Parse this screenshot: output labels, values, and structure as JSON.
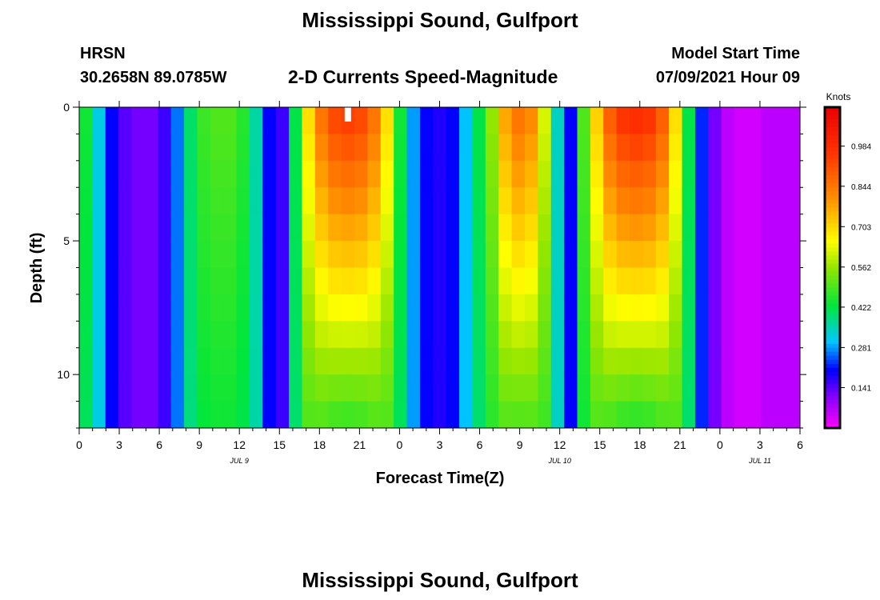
{
  "header": {
    "title": "Mississippi Sound, Gulfport",
    "station": "HRSN",
    "coordinates": "30.2658N  89.0785W",
    "subtitle": "2-D Currents Speed-Magnitude",
    "model_start_label": "Model Start Time",
    "model_start_value": "07/09/2021 Hour 09"
  },
  "footer": {
    "title": "Mississippi Sound, Gulfport"
  },
  "chart_data": {
    "type": "heatmap",
    "title": "2-D Currents Speed-Magnitude",
    "xlabel": "Forecast Time(Z)",
    "ylabel": "Depth (ft)",
    "x_tick_labels": [
      "0",
      "3",
      "6",
      "9",
      "12",
      "15",
      "18",
      "21",
      "0",
      "3",
      "6",
      "9",
      "12",
      "15",
      "18",
      "21",
      "0",
      "3",
      "6"
    ],
    "date_labels": [
      "JUL 9",
      "JUL 10",
      "JUL 11"
    ],
    "y_ticks": [
      0,
      5,
      10
    ],
    "ylim": [
      0,
      12
    ],
    "colorbar": {
      "unit": "Knots",
      "tick_labels": [
        "0.984",
        "0.844",
        "0.703",
        "0.562",
        "0.422",
        "0.281",
        "0.141"
      ],
      "range": [
        0,
        1.12
      ]
    },
    "depth_levels_ft": [
      0.5,
      1.5,
      2.5,
      3.5,
      4.5,
      5.5,
      6.5,
      7.5,
      8.5,
      9.5,
      10.5,
      11.5
    ],
    "time_hours": [
      0,
      1,
      2,
      3,
      4,
      5,
      6,
      7,
      8,
      9,
      10,
      11,
      12,
      13,
      14,
      15,
      16,
      17,
      18,
      19,
      20,
      21,
      22,
      23,
      24,
      25,
      26,
      27,
      28,
      29,
      30,
      31,
      32,
      33,
      34,
      35,
      36,
      37,
      38,
      39,
      40,
      41,
      42,
      43,
      44,
      45,
      46,
      47,
      48,
      49,
      50,
      51,
      52,
      53,
      54
    ],
    "surface_speed_knots": [
      0.44,
      0.32,
      0.2,
      0.14,
      0.12,
      0.12,
      0.16,
      0.26,
      0.4,
      0.48,
      0.5,
      0.5,
      0.46,
      0.36,
      0.2,
      0.16,
      0.42,
      0.7,
      0.86,
      0.94,
      0.96,
      0.94,
      0.86,
      0.7,
      0.44,
      0.28,
      0.2,
      0.18,
      0.2,
      0.3,
      0.42,
      0.56,
      0.78,
      0.86,
      0.82,
      0.62,
      0.34,
      0.2,
      0.5,
      0.72,
      0.9,
      0.98,
      1.0,
      0.98,
      0.9,
      0.7,
      0.42,
      0.22,
      0.12,
      0.06,
      0.04,
      0.04,
      0.06,
      0.06,
      0.06
    ]
  }
}
